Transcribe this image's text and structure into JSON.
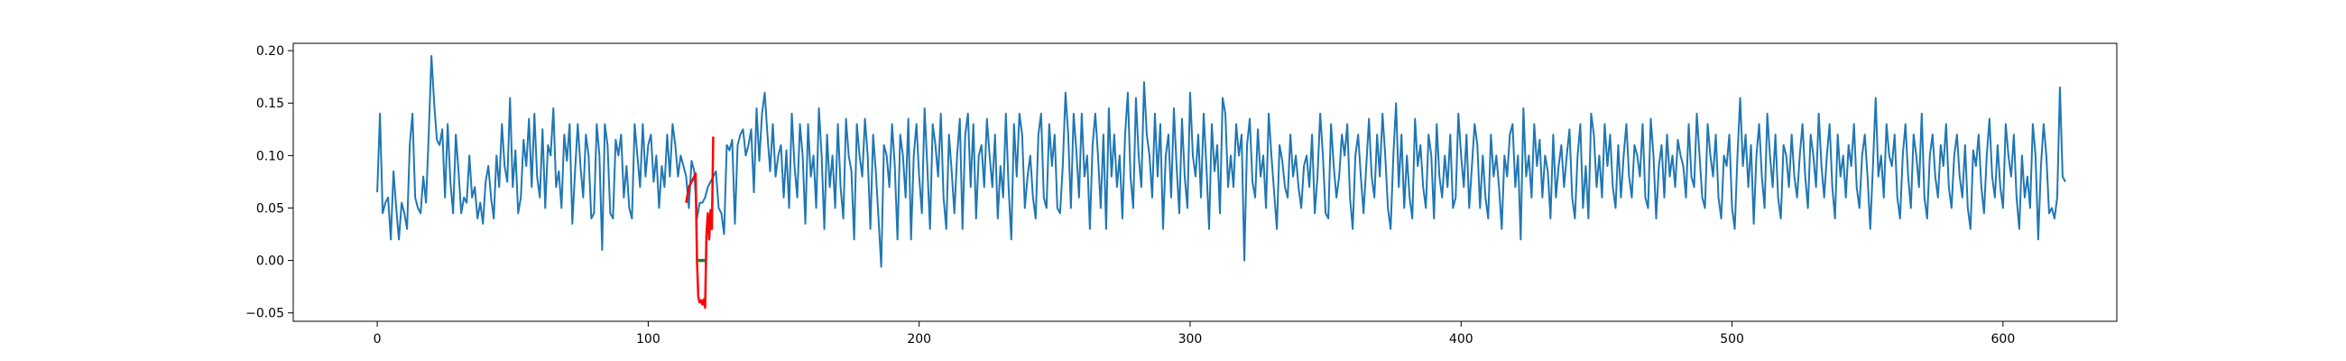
{
  "chart_data": {
    "type": "line",
    "title": "",
    "xlabel": "",
    "ylabel": "",
    "xlim": [
      -31,
      642
    ],
    "ylim": [
      -0.058,
      0.207
    ],
    "x_ticks": [
      0,
      100,
      200,
      300,
      400,
      500,
      600
    ],
    "x_tick_labels": [
      "0",
      "100",
      "200",
      "300",
      "400",
      "500",
      "600"
    ],
    "y_ticks": [
      -0.05,
      0.0,
      0.05,
      0.1,
      0.15,
      0.2
    ],
    "y_tick_labels": [
      "−0.05",
      "0.00",
      "0.05",
      "0.10",
      "0.15",
      "0.20"
    ],
    "grid": false,
    "colors": {
      "main": "#1f77b4",
      "highlight": "#ff0000",
      "marker": "#2e7d32"
    },
    "series": [
      {
        "role": "main",
        "x_start": 0,
        "x_step": 1,
        "values": [
          0.065,
          0.14,
          0.045,
          0.055,
          0.06,
          0.02,
          0.085,
          0.05,
          0.02,
          0.055,
          0.045,
          0.03,
          0.11,
          0.14,
          0.06,
          0.05,
          0.045,
          0.08,
          0.055,
          0.12,
          0.195,
          0.15,
          0.115,
          0.11,
          0.125,
          0.06,
          0.13,
          0.075,
          0.045,
          0.12,
          0.085,
          0.045,
          0.06,
          0.055,
          0.1,
          0.06,
          0.07,
          0.04,
          0.055,
          0.035,
          0.075,
          0.09,
          0.06,
          0.04,
          0.1,
          0.07,
          0.13,
          0.09,
          0.075,
          0.155,
          0.07,
          0.105,
          0.045,
          0.06,
          0.115,
          0.09,
          0.135,
          0.07,
          0.14,
          0.08,
          0.06,
          0.125,
          0.05,
          0.11,
          0.1,
          0.145,
          0.07,
          0.085,
          0.05,
          0.12,
          0.095,
          0.13,
          0.035,
          0.085,
          0.13,
          0.09,
          0.06,
          0.12,
          0.1,
          0.04,
          0.045,
          0.13,
          0.1,
          0.01,
          0.13,
          0.11,
          0.045,
          0.04,
          0.115,
          0.1,
          0.12,
          0.06,
          0.09,
          0.05,
          0.04,
          0.13,
          0.1,
          0.07,
          0.13,
          0.08,
          0.11,
          0.12,
          0.075,
          0.1,
          0.05,
          0.09,
          0.07,
          0.12,
          0.08,
          0.13,
          0.11,
          0.08,
          0.1,
          0.09,
          0.08,
          0.05,
          0.095,
          0.085,
          0.04,
          0.055,
          0.055,
          0.06,
          0.07,
          0.075,
          0.08,
          0.085,
          0.05,
          0.045,
          0.025,
          0.11,
          0.105,
          0.115,
          0.035,
          0.11,
          0.12,
          0.125,
          0.1,
          0.11,
          0.125,
          0.065,
          0.145,
          0.095,
          0.14,
          0.16,
          0.12,
          0.085,
          0.13,
          0.08,
          0.1,
          0.11,
          0.06,
          0.105,
          0.05,
          0.14,
          0.09,
          0.06,
          0.13,
          0.1,
          0.035,
          0.13,
          0.08,
          0.1,
          0.05,
          0.145,
          0.1,
          0.03,
          0.12,
          0.07,
          0.1,
          0.05,
          0.13,
          0.07,
          0.04,
          0.135,
          0.1,
          0.085,
          0.02,
          0.13,
          0.1,
          0.08,
          0.135,
          0.1,
          0.03,
          0.12,
          0.085,
          0.04,
          -0.006,
          0.11,
          0.1,
          0.07,
          0.13,
          0.09,
          0.02,
          0.12,
          0.1,
          0.06,
          0.135,
          0.02,
          0.1,
          0.13,
          0.08,
          0.045,
          0.145,
          0.09,
          0.03,
          0.13,
          0.11,
          0.08,
          0.14,
          0.06,
          0.03,
          0.12,
          0.085,
          0.045,
          0.1,
          0.135,
          0.03,
          0.12,
          0.14,
          0.07,
          0.13,
          0.04,
          0.1,
          0.11,
          0.07,
          0.135,
          0.1,
          0.07,
          0.12,
          0.04,
          0.09,
          0.06,
          0.14,
          0.07,
          0.02,
          0.13,
          0.08,
          0.14,
          0.12,
          0.05,
          0.08,
          0.1,
          0.06,
          0.04,
          0.12,
          0.14,
          0.06,
          0.05,
          0.13,
          0.09,
          0.12,
          0.05,
          0.045,
          0.09,
          0.16,
          0.12,
          0.05,
          0.14,
          0.105,
          0.06,
          0.14,
          0.08,
          0.1,
          0.03,
          0.11,
          0.14,
          0.1,
          0.05,
          0.12,
          0.03,
          0.145,
          0.08,
          0.12,
          0.07,
          0.1,
          0.04,
          0.12,
          0.16,
          0.08,
          0.05,
          0.155,
          0.1,
          0.07,
          0.17,
          0.12,
          0.1,
          0.06,
          0.14,
          0.08,
          0.13,
          0.03,
          0.1,
          0.12,
          0.06,
          0.145,
          0.09,
          0.045,
          0.135,
          0.08,
          0.05,
          0.16,
          0.1,
          0.08,
          0.12,
          0.06,
          0.14,
          0.09,
          0.03,
          0.13,
          0.085,
          0.11,
          0.045,
          0.155,
          0.14,
          0.07,
          0.1,
          0.07,
          0.13,
          0.1,
          0.12,
          0.0,
          0.11,
          0.135,
          0.075,
          0.06,
          0.125,
          0.08,
          0.1,
          0.05,
          0.14,
          0.1,
          0.065,
          0.03,
          0.11,
          0.095,
          0.07,
          0.06,
          0.12,
          0.08,
          0.1,
          0.07,
          0.05,
          0.09,
          0.1,
          0.07,
          0.12,
          0.045,
          0.08,
          0.14,
          0.1,
          0.045,
          0.04,
          0.13,
          0.09,
          0.06,
          0.08,
          0.12,
          0.1,
          0.13,
          0.06,
          0.03,
          0.1,
          0.12,
          0.08,
          0.045,
          0.09,
          0.135,
          0.08,
          0.06,
          0.12,
          0.08,
          0.14,
          0.1,
          0.05,
          0.03,
          0.1,
          0.15,
          0.07,
          0.12,
          0.05,
          0.1,
          0.06,
          0.04,
          0.135,
          0.09,
          0.11,
          0.07,
          0.05,
          0.12,
          0.1,
          0.04,
          0.13,
          0.08,
          0.06,
          0.1,
          0.07,
          0.12,
          0.05,
          0.06,
          0.14,
          0.1,
          0.07,
          0.12,
          0.05,
          0.09,
          0.13,
          0.11,
          0.05,
          0.1,
          0.06,
          0.04,
          0.12,
          0.08,
          0.1,
          0.07,
          0.03,
          0.1,
          0.08,
          0.12,
          0.13,
          0.07,
          0.1,
          0.02,
          0.145,
          0.08,
          0.1,
          0.06,
          0.13,
          0.09,
          0.115,
          0.06,
          0.1,
          0.085,
          0.04,
          0.12,
          0.06,
          0.09,
          0.11,
          0.07,
          0.1,
          0.125,
          0.06,
          0.04,
          0.1,
          0.13,
          0.05,
          0.09,
          0.04,
          0.14,
          0.12,
          0.07,
          0.1,
          0.06,
          0.13,
          0.09,
          0.12,
          0.07,
          0.05,
          0.11,
          0.06,
          0.1,
          0.13,
          0.08,
          0.06,
          0.11,
          0.1,
          0.08,
          0.13,
          0.06,
          0.05,
          0.135,
          0.1,
          0.04,
          0.09,
          0.11,
          0.06,
          0.12,
          0.08,
          0.1,
          0.07,
          0.115,
          0.1,
          0.09,
          0.06,
          0.13,
          0.08,
          0.07,
          0.14,
          0.1,
          0.06,
          0.05,
          0.13,
          0.1,
          0.08,
          0.12,
          0.06,
          0.04,
          0.1,
          0.09,
          0.12,
          0.05,
          0.03,
          0.1,
          0.155,
          0.09,
          0.12,
          0.07,
          0.11,
          0.035,
          0.1,
          0.13,
          0.08,
          0.05,
          0.14,
          0.1,
          0.07,
          0.12,
          0.06,
          0.04,
          0.11,
          0.1,
          0.07,
          0.12,
          0.08,
          0.06,
          0.1,
          0.13,
          0.08,
          0.05,
          0.12,
          0.1,
          0.07,
          0.14,
          0.09,
          0.06,
          0.1,
          0.13,
          0.07,
          0.04,
          0.12,
          0.08,
          0.1,
          0.06,
          0.11,
          0.09,
          0.13,
          0.07,
          0.05,
          0.1,
          0.12,
          0.08,
          0.03,
          0.09,
          0.155,
          0.08,
          0.1,
          0.06,
          0.13,
          0.1,
          0.09,
          0.12,
          0.06,
          0.04,
          0.1,
          0.13,
          0.08,
          0.05,
          0.12,
          0.1,
          0.07,
          0.14,
          0.06,
          0.04,
          0.1,
          0.12,
          0.08,
          0.06,
          0.11,
          0.09,
          0.13,
          0.07,
          0.05,
          0.1,
          0.12,
          0.08,
          0.06,
          0.11,
          0.05,
          0.03,
          0.105,
          0.09,
          0.12,
          0.07,
          0.045,
          0.1,
          0.135,
          0.08,
          0.06,
          0.11,
          0.07,
          0.05,
          0.13,
          0.1,
          0.08,
          0.12,
          0.06,
          0.03,
          0.1,
          0.06,
          0.08,
          0.05,
          0.13,
          0.1,
          0.02,
          0.09,
          0.13,
          0.1,
          0.045,
          0.05,
          0.04,
          0.06,
          0.165,
          0.08,
          0.075
        ]
      },
      {
        "role": "highlight",
        "x": [
          114,
          115,
          116,
          117,
          117.5,
          118,
          118.5,
          119,
          119.5,
          120,
          120.5,
          121,
          121.5,
          122,
          122.5,
          123,
          123.5,
          124
        ],
        "values": [
          0.055,
          0.07,
          0.075,
          0.08,
          0.083,
          0.0,
          -0.035,
          -0.04,
          -0.038,
          -0.042,
          -0.037,
          -0.045,
          0.025,
          0.045,
          0.02,
          0.048,
          0.03,
          0.118
        ]
      },
      {
        "role": "marker",
        "x": [
          118,
          121
        ],
        "values": [
          0.0,
          0.0
        ]
      }
    ]
  }
}
